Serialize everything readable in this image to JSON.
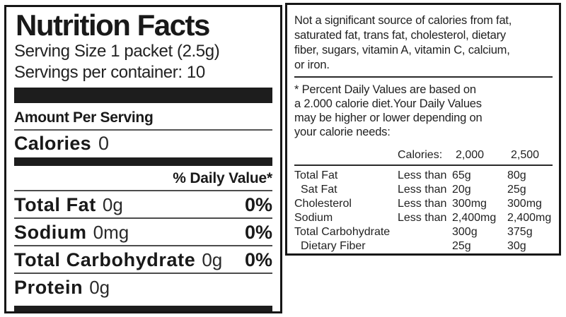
{
  "label": {
    "title": "Nutrition Facts",
    "serving_size": "Serving Size 1 packet (2.5g)",
    "servings_per_container": "Servings per container: 10",
    "amount_per_serving": "Amount Per Serving",
    "calories_label": "Calories",
    "calories_value": "0",
    "daily_value_header": "% Daily Value*",
    "rows": [
      {
        "name": "Total Fat",
        "amount": "0g",
        "dv": "0%"
      },
      {
        "name": "Sodium",
        "amount": "0mg",
        "dv": "0%"
      },
      {
        "name": "Total Carbohydrate",
        "amount": "0g",
        "dv": "0%"
      },
      {
        "name": "Protein",
        "amount": "0g",
        "dv": ""
      }
    ]
  },
  "side_panel": {
    "not_significant_text": "Not a significant source of calories from fat,\nsaturated fat, trans fat, cholesterol, dietary\nfiber, sugars, vitamin A, vitamin C, calcium,\nor iron.",
    "footnote_text": "* Percent Daily Values are based on\na 2.000 calorie diet.Your Daily Values\nmay be higher or lower depending on\nyour calorie needs:",
    "table": {
      "header": {
        "label": "Calories:",
        "col1": "2,000",
        "col2": "2,500"
      },
      "rows": [
        {
          "name": "Total Fat",
          "qualifier": "Less than",
          "col1": "65g",
          "col2": "80g"
        },
        {
          "name": "Sat Fat",
          "qualifier": "Less than",
          "col1": "20g",
          "col2": "25g"
        },
        {
          "name": "Cholesterol",
          "qualifier": "Less than",
          "col1": "300mg",
          "col2": "300mg"
        },
        {
          "name": "Sodium",
          "qualifier": "Less than",
          "col1": "2,400mg",
          "col2": "2,400mg"
        },
        {
          "name": "Total Carbohydrate",
          "qualifier": "",
          "col1": "300g",
          "col2": "375g"
        },
        {
          "name": "Dietary Fiber",
          "qualifier": "",
          "col1": "25g",
          "col2": "30g"
        }
      ]
    }
  },
  "colors": {
    "ink": "#1b1b1b",
    "background": "#ffffff",
    "divider": "#4c4c4c"
  }
}
